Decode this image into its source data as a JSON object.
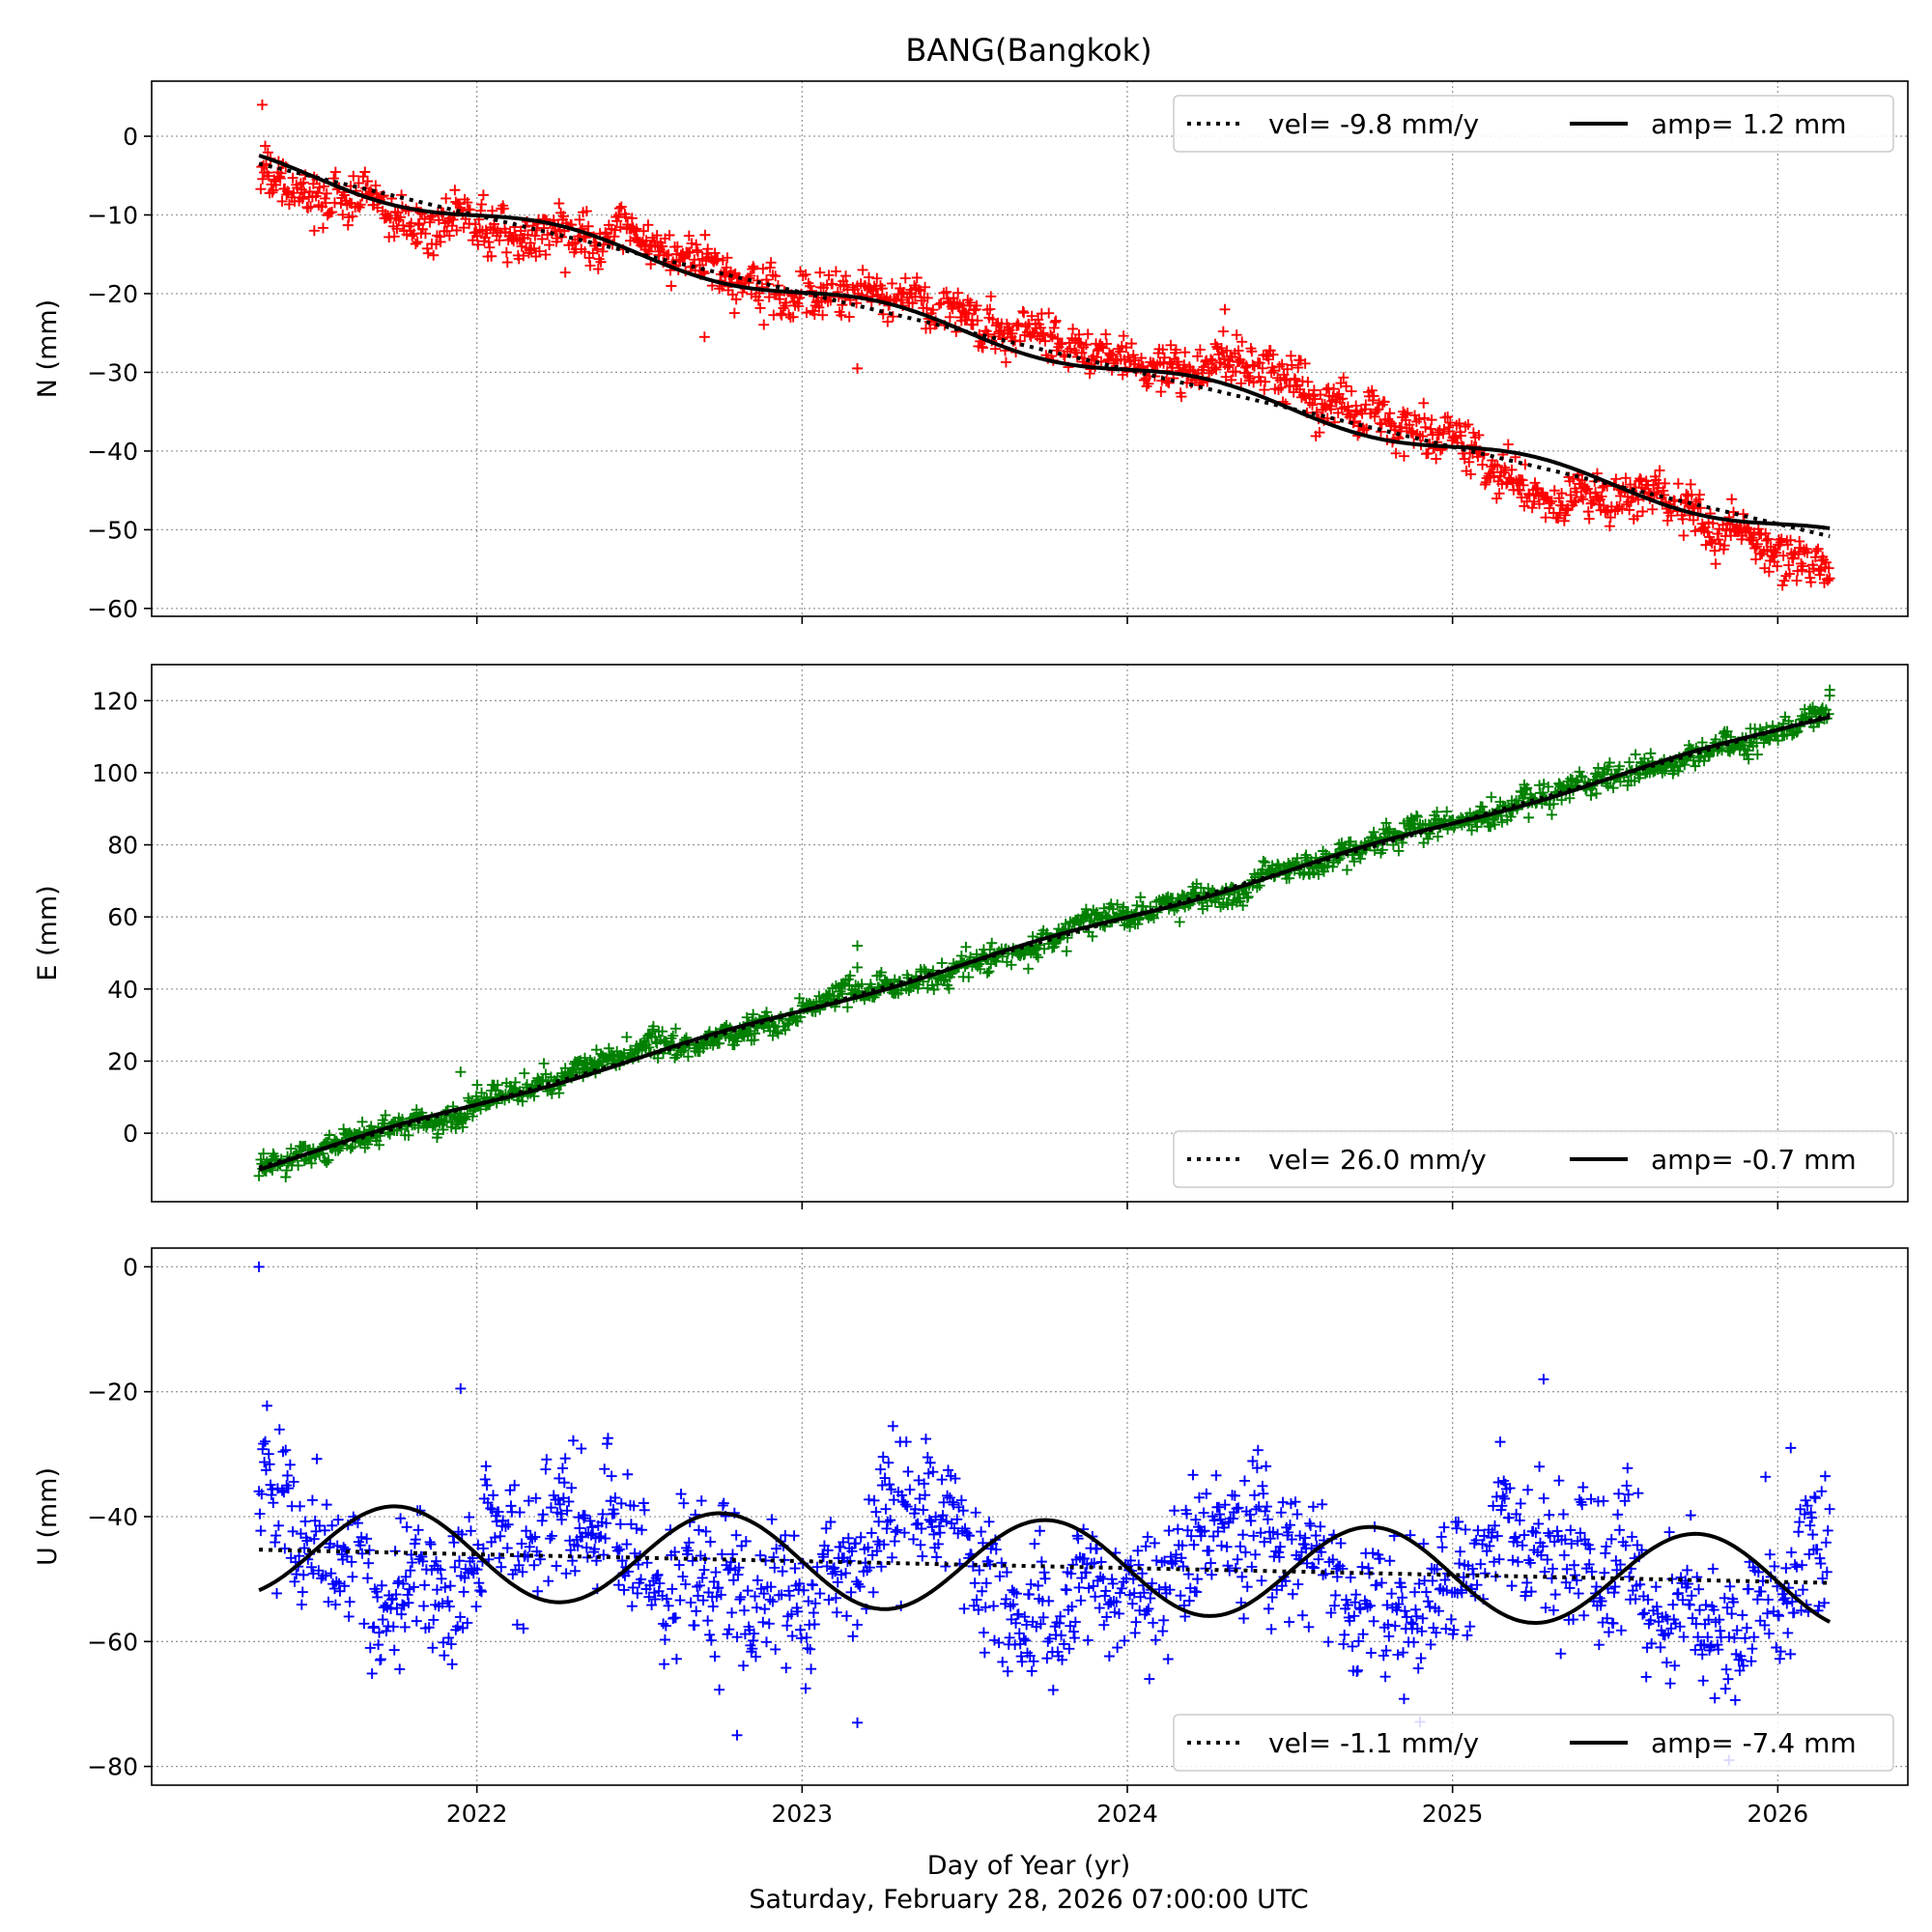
{
  "figure": {
    "title": "BANG(Bangkok)",
    "xlabel": "Day of Year (yr)",
    "timestamp": "Saturday, February 28, 2026 07:00:00 UTC",
    "x_ticks": [
      2022,
      2023,
      2024,
      2025,
      2026
    ],
    "x_tick_labels": [
      "2022",
      "2023",
      "2024",
      "2025",
      "2026"
    ],
    "xlim": [
      2021.0,
      2026.4
    ]
  },
  "chart_data": [
    {
      "type": "scatter",
      "component": "N",
      "ylabel": "N (mm)",
      "ylim": [
        -61,
        7
      ],
      "y_ticks": [
        0,
        -10,
        -20,
        -30,
        -40,
        -50,
        -60
      ],
      "y_tick_labels": [
        "0",
        "−10",
        "−20",
        "−30",
        "−40",
        "−50",
        "−60"
      ],
      "grid": true,
      "legend_position": "top-right",
      "marker_color": "#ff0000",
      "x_start": 2021.33,
      "x_end": 2026.16,
      "points_summary": [
        {
          "x": 2021.33,
          "y": -4
        },
        {
          "x": 2021.6,
          "y": -7
        },
        {
          "x": 2022.0,
          "y": -11
        },
        {
          "x": 2022.35,
          "y": -12
        },
        {
          "x": 2022.7,
          "y": -17
        },
        {
          "x": 2023.0,
          "y": -20
        },
        {
          "x": 2023.35,
          "y": -20
        },
        {
          "x": 2023.7,
          "y": -25
        },
        {
          "x": 2024.0,
          "y": -28
        },
        {
          "x": 2024.35,
          "y": -29
        },
        {
          "x": 2024.7,
          "y": -35
        },
        {
          "x": 2025.0,
          "y": -40
        },
        {
          "x": 2025.35,
          "y": -46
        },
        {
          "x": 2025.7,
          "y": -47
        },
        {
          "x": 2026.16,
          "y": -56
        }
      ],
      "outliers": [
        {
          "x": 2021.34,
          "y": 4
        },
        {
          "x": 2021.5,
          "y": -12
        },
        {
          "x": 2022.7,
          "y": -25.5
        },
        {
          "x": 2023.17,
          "y": -29.5
        },
        {
          "x": 2024.3,
          "y": -22
        }
      ],
      "fit": {
        "offset": -3.5,
        "velocity": -9.8,
        "amplitude": 1.2,
        "phase_peak": 0.25
      },
      "legend": [
        {
          "style": "dotted",
          "label": "vel= -9.8 mm/y"
        },
        {
          "style": "solid",
          "label": "amp= 1.2 mm"
        }
      ]
    },
    {
      "type": "scatter",
      "component": "E",
      "ylabel": "E (mm)",
      "ylim": [
        -19,
        130
      ],
      "y_ticks": [
        0,
        20,
        40,
        60,
        80,
        100,
        120
      ],
      "y_tick_labels": [
        "0",
        "20",
        "40",
        "60",
        "80",
        "100",
        "120"
      ],
      "grid": true,
      "legend_position": "bottom-right",
      "marker_color": "#008000",
      "x_start": 2021.33,
      "x_end": 2026.16,
      "points_summary": [
        {
          "x": 2021.33,
          "y": -9
        },
        {
          "x": 2022.0,
          "y": 8
        },
        {
          "x": 2022.5,
          "y": 22
        },
        {
          "x": 2023.0,
          "y": 34
        },
        {
          "x": 2023.5,
          "y": 46
        },
        {
          "x": 2024.0,
          "y": 60
        },
        {
          "x": 2024.5,
          "y": 72
        },
        {
          "x": 2025.0,
          "y": 86
        },
        {
          "x": 2025.5,
          "y": 99
        },
        {
          "x": 2026.16,
          "y": 116
        }
      ],
      "outliers": [
        {
          "x": 2023.17,
          "y": 52
        },
        {
          "x": 2023.17,
          "y": 46
        },
        {
          "x": 2021.95,
          "y": 17
        },
        {
          "x": 2026.16,
          "y": 123
        }
      ],
      "fit": {
        "offset": -9.5,
        "velocity": 26.0,
        "amplitude": -0.7,
        "phase_peak": 0.25
      },
      "legend": [
        {
          "style": "dotted",
          "label": "vel= 26.0 mm/y"
        },
        {
          "style": "solid",
          "label": "amp= -0.7 mm"
        }
      ]
    },
    {
      "type": "scatter",
      "component": "U",
      "ylabel": "U (mm)",
      "ylim": [
        -83,
        3
      ],
      "y_ticks": [
        0,
        -20,
        -40,
        -60,
        -80
      ],
      "y_tick_labels": [
        "0",
        "−20",
        "−40",
        "−60",
        "−80"
      ],
      "grid": true,
      "legend_position": "bottom-right",
      "marker_color": "#0000ff",
      "x_start": 2021.33,
      "x_end": 2026.16,
      "points_summary": [
        {
          "x": 2021.33,
          "y": -37
        },
        {
          "x": 2021.8,
          "y": -53
        },
        {
          "x": 2022.3,
          "y": -39
        },
        {
          "x": 2022.8,
          "y": -54
        },
        {
          "x": 2023.3,
          "y": -40
        },
        {
          "x": 2023.8,
          "y": -55
        },
        {
          "x": 2024.3,
          "y": -41
        },
        {
          "x": 2024.8,
          "y": -56
        },
        {
          "x": 2025.3,
          "y": -42
        },
        {
          "x": 2025.8,
          "y": -57
        },
        {
          "x": 2026.16,
          "y": -46
        }
      ],
      "outliers": [
        {
          "x": 2021.33,
          "y": 0
        },
        {
          "x": 2021.95,
          "y": -19.5
        },
        {
          "x": 2025.28,
          "y": -18
        },
        {
          "x": 2022.8,
          "y": -75
        },
        {
          "x": 2023.17,
          "y": -73
        },
        {
          "x": 2025.85,
          "y": -79
        },
        {
          "x": 2026.04,
          "y": -29
        }
      ],
      "fit": {
        "offset": -45.3,
        "velocity": -1.1,
        "amplitude": -7.4,
        "phase_peak": 0.25
      },
      "legend": [
        {
          "style": "dotted",
          "label": "vel= -1.1 mm/y"
        },
        {
          "style": "solid",
          "label": "amp= -7.4 mm"
        }
      ]
    }
  ]
}
